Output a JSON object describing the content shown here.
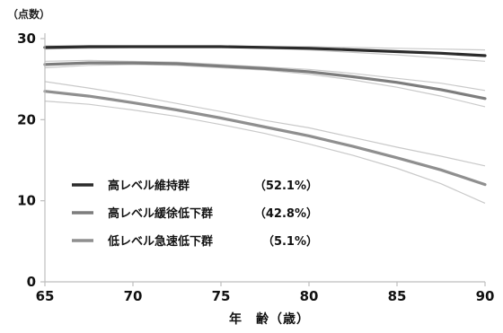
{
  "chart_data": {
    "type": "line",
    "ylabel": "（点数）",
    "xlabel": "年　齢（歳）",
    "xlim": [
      65,
      90
    ],
    "ylim": [
      0,
      30
    ],
    "x_ticks": [
      "65",
      "70",
      "75",
      "80",
      "85",
      "90"
    ],
    "y_ticks": [
      "0",
      "10",
      "20",
      "30"
    ],
    "grid": false,
    "legend_position": "lower-left",
    "x": [
      65,
      67.5,
      70,
      72.5,
      75,
      77.5,
      80,
      82.5,
      85,
      87.5,
      90
    ],
    "series": [
      {
        "name": "高レベル維持群",
        "pct": "（52.1%）",
        "color": "#2b2b2b",
        "values": [
          28.9,
          29.0,
          29.0,
          29.0,
          29.0,
          28.9,
          28.8,
          28.6,
          28.4,
          28.2,
          27.9
        ],
        "ci_lower": [
          28.7,
          28.8,
          28.9,
          28.9,
          28.9,
          28.8,
          28.6,
          28.3,
          28.0,
          27.6,
          27.2
        ],
        "ci_upper": [
          29.1,
          29.1,
          29.1,
          29.1,
          29.1,
          29.0,
          29.0,
          28.9,
          28.8,
          28.7,
          28.6
        ]
      },
      {
        "name": "高レベル緩徐低下群",
        "pct": "（42.8%）",
        "color": "#7d7d7d",
        "values": [
          26.8,
          27.0,
          27.0,
          26.9,
          26.6,
          26.3,
          25.9,
          25.3,
          24.6,
          23.7,
          22.6
        ],
        "ci_lower": [
          26.4,
          26.7,
          26.8,
          26.7,
          26.4,
          26.1,
          25.6,
          24.9,
          24.0,
          22.9,
          21.6
        ],
        "ci_upper": [
          27.2,
          27.3,
          27.2,
          27.1,
          26.8,
          26.5,
          26.2,
          25.7,
          25.1,
          24.5,
          23.6
        ]
      },
      {
        "name": "低レベル急速低下群",
        "pct": "（5.1%）",
        "color": "#8f8f8f",
        "values": [
          23.5,
          22.9,
          22.1,
          21.2,
          20.2,
          19.1,
          18.0,
          16.7,
          15.3,
          13.8,
          12.0
        ],
        "ci_lower": [
          22.3,
          21.9,
          21.2,
          20.4,
          19.4,
          18.3,
          17.0,
          15.6,
          14.0,
          12.1,
          9.7
        ],
        "ci_upper": [
          24.7,
          23.9,
          23.0,
          22.0,
          21.0,
          19.9,
          19.0,
          17.8,
          16.6,
          15.5,
          14.3
        ]
      }
    ]
  }
}
